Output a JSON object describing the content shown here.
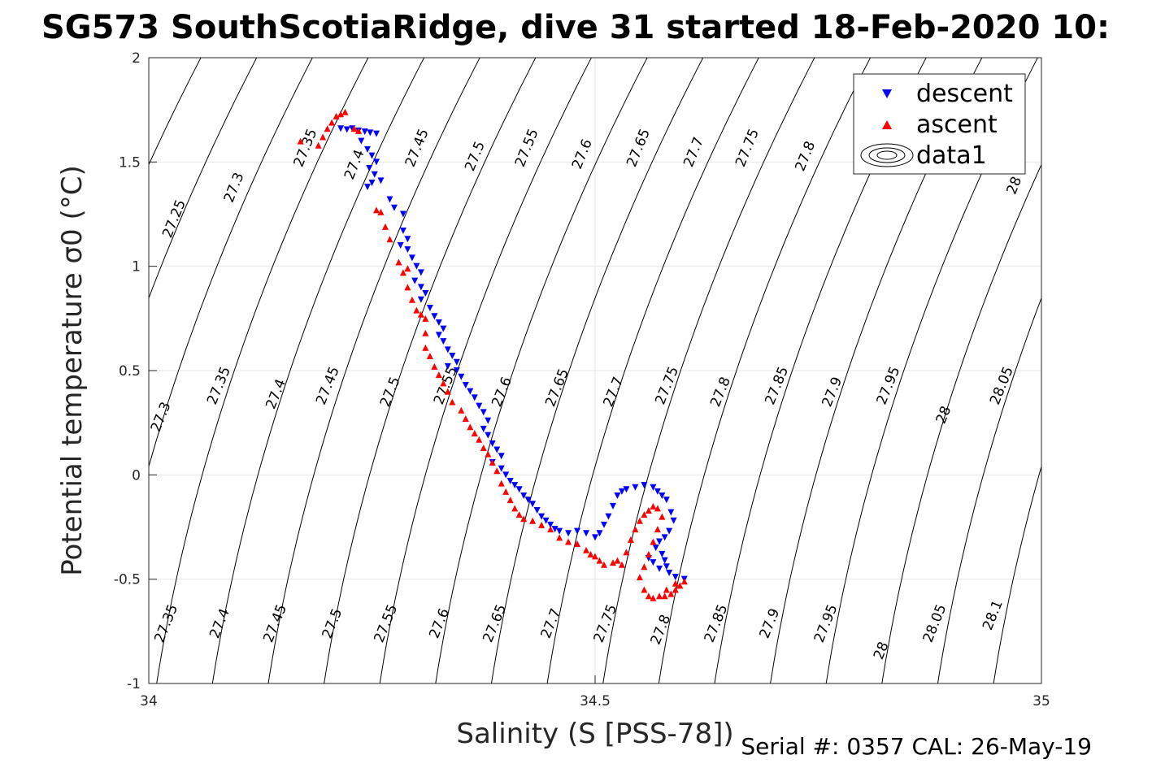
{
  "chart_data": {
    "type": "scatter",
    "title": "SG573 SouthScotiaRidge, dive 31 started 18-Feb-2020 10:",
    "xlabel": "Salinity (S [PSS-78])",
    "ylabel": "Potential temperature σ0 (°C)",
    "xlim": [
      34,
      35
    ],
    "ylim": [
      -1,
      2
    ],
    "x_ticks": [
      34,
      34.5,
      35
    ],
    "x_tick_labels": [
      "34",
      "34.5",
      "35"
    ],
    "y_ticks": [
      -1,
      -0.5,
      0,
      0.5,
      1,
      1.5,
      2
    ],
    "y_tick_labels": [
      "-1",
      "-0.5",
      "0",
      "0.5",
      "1",
      "1.5",
      "2"
    ],
    "grid": true,
    "legend_position": "top-right",
    "legend": [
      "descent",
      "ascent",
      "data1"
    ],
    "footer": "Serial #: 0357  CAL: 26-May-19",
    "colors": {
      "descent": "#0000ff",
      "ascent": "#ff0000",
      "contour": "#000000",
      "grid": "#e6e6e6"
    },
    "density_contours": {
      "levels": [
        27.25,
        27.3,
        27.35,
        27.4,
        27.45,
        27.5,
        27.55,
        27.6,
        27.65,
        27.7,
        27.75,
        27.8,
        27.85,
        27.9,
        27.95,
        28,
        28.05,
        28.1
      ],
      "labels": [
        {
          "text": "27.25",
          "s": 34.033,
          "t": 1.22
        },
        {
          "text": "27.3",
          "s": 34.1,
          "t": 1.37
        },
        {
          "text": "27.35",
          "s": 34.18,
          "t": 1.56
        },
        {
          "text": "27.4",
          "s": 34.235,
          "t": 1.48
        },
        {
          "text": "27.45",
          "s": 34.305,
          "t": 1.56
        },
        {
          "text": "27.5",
          "s": 34.37,
          "t": 1.52
        },
        {
          "text": "27.55",
          "s": 34.428,
          "t": 1.56
        },
        {
          "text": "27.6",
          "s": 34.49,
          "t": 1.53
        },
        {
          "text": "27.65",
          "s": 34.553,
          "t": 1.56
        },
        {
          "text": "27.7",
          "s": 34.615,
          "t": 1.54
        },
        {
          "text": "27.75",
          "s": 34.675,
          "t": 1.56
        },
        {
          "text": "27.8",
          "s": 34.74,
          "t": 1.52
        },
        {
          "text": "28",
          "s": 34.974,
          "t": 1.38
        },
        {
          "text": "27.3",
          "s": 34.018,
          "t": 0.27
        },
        {
          "text": "27.35",
          "s": 34.083,
          "t": 0.42
        },
        {
          "text": "27.4",
          "s": 34.147,
          "t": 0.38
        },
        {
          "text": "27.45",
          "s": 34.205,
          "t": 0.42
        },
        {
          "text": "27.5",
          "s": 34.275,
          "t": 0.39
        },
        {
          "text": "27.55",
          "s": 34.337,
          "t": 0.42
        },
        {
          "text": "27.6",
          "s": 34.4,
          "t": 0.39
        },
        {
          "text": "27.65",
          "s": 34.462,
          "t": 0.41
        },
        {
          "text": "27.7",
          "s": 34.525,
          "t": 0.39
        },
        {
          "text": "27.75",
          "s": 34.585,
          "t": 0.42
        },
        {
          "text": "27.8",
          "s": 34.645,
          "t": 0.39
        },
        {
          "text": "27.85",
          "s": 34.708,
          "t": 0.42
        },
        {
          "text": "27.9",
          "s": 34.77,
          "t": 0.39
        },
        {
          "text": "27.95",
          "s": 34.833,
          "t": 0.42
        },
        {
          "text": "28",
          "s": 34.895,
          "t": 0.28
        },
        {
          "text": "28.05",
          "s": 34.96,
          "t": 0.42
        },
        {
          "text": "27.35",
          "s": 34.024,
          "t": -0.72
        },
        {
          "text": "27.4",
          "s": 34.084,
          "t": -0.72
        },
        {
          "text": "27.45",
          "s": 34.146,
          "t": -0.72
        },
        {
          "text": "27.5",
          "s": 34.21,
          "t": -0.72
        },
        {
          "text": "27.55",
          "s": 34.27,
          "t": -0.72
        },
        {
          "text": "27.6",
          "s": 34.33,
          "t": -0.72
        },
        {
          "text": "27.65",
          "s": 34.392,
          "t": -0.72
        },
        {
          "text": "27.7",
          "s": 34.455,
          "t": -0.72
        },
        {
          "text": "27.75",
          "s": 34.516,
          "t": -0.72
        },
        {
          "text": "27.8",
          "s": 34.578,
          "t": -0.75
        },
        {
          "text": "27.85",
          "s": 34.64,
          "t": -0.72
        },
        {
          "text": "27.9",
          "s": 34.7,
          "t": -0.72
        },
        {
          "text": "27.95",
          "s": 34.763,
          "t": -0.72
        },
        {
          "text": "28",
          "s": 34.825,
          "t": -0.85
        },
        {
          "text": "28.05",
          "s": 34.885,
          "t": -0.72
        },
        {
          "text": "28.1",
          "s": 34.95,
          "t": -0.68
        }
      ]
    },
    "series": [
      {
        "name": "descent",
        "marker": "triangle-down",
        "points": [
          [
            34.215,
            1.66
          ],
          [
            34.222,
            1.655
          ],
          [
            34.228,
            1.66
          ],
          [
            34.235,
            1.65
          ],
          [
            34.242,
            1.645
          ],
          [
            34.248,
            1.64
          ],
          [
            34.255,
            1.635
          ],
          [
            34.238,
            1.6
          ],
          [
            34.245,
            1.56
          ],
          [
            34.25,
            1.53
          ],
          [
            34.255,
            1.5
          ],
          [
            34.247,
            1.47
          ],
          [
            34.253,
            1.44
          ],
          [
            34.26,
            1.41
          ],
          [
            34.245,
            1.38
          ],
          [
            34.25,
            1.4
          ],
          [
            34.27,
            1.32
          ],
          [
            34.275,
            1.28
          ],
          [
            34.285,
            1.25
          ],
          [
            34.285,
            1.17
          ],
          [
            34.29,
            1.13
          ],
          [
            34.282,
            1.1
          ],
          [
            34.29,
            1.08
          ],
          [
            34.295,
            1.04
          ],
          [
            34.3,
            1.0
          ],
          [
            34.305,
            0.97
          ],
          [
            34.298,
            0.93
          ],
          [
            34.305,
            0.9
          ],
          [
            34.31,
            0.87
          ],
          [
            34.305,
            0.84
          ],
          [
            34.315,
            0.8
          ],
          [
            34.32,
            0.76
          ],
          [
            34.325,
            0.73
          ],
          [
            34.33,
            0.7
          ],
          [
            34.325,
            0.67
          ],
          [
            34.33,
            0.64
          ],
          [
            34.335,
            0.6
          ],
          [
            34.34,
            0.57
          ],
          [
            34.345,
            0.54
          ],
          [
            34.335,
            0.52
          ],
          [
            34.345,
            0.5
          ],
          [
            34.35,
            0.47
          ],
          [
            34.355,
            0.43
          ],
          [
            34.36,
            0.4
          ],
          [
            34.365,
            0.37
          ],
          [
            34.37,
            0.33
          ],
          [
            34.375,
            0.3
          ],
          [
            34.38,
            0.26
          ],
          [
            34.375,
            0.22
          ],
          [
            34.38,
            0.19
          ],
          [
            34.385,
            0.15
          ],
          [
            34.39,
            0.12
          ],
          [
            34.395,
            0.09
          ],
          [
            34.385,
            0.06
          ],
          [
            34.395,
            0.03
          ],
          [
            34.4,
            0.0
          ],
          [
            34.405,
            -0.03
          ],
          [
            34.41,
            -0.05
          ],
          [
            34.415,
            -0.07
          ],
          [
            34.42,
            -0.1
          ],
          [
            34.425,
            -0.12
          ],
          [
            34.43,
            -0.14
          ],
          [
            34.435,
            -0.17
          ],
          [
            34.44,
            -0.2
          ],
          [
            34.445,
            -0.22
          ],
          [
            34.45,
            -0.24
          ],
          [
            34.455,
            -0.26
          ],
          [
            34.46,
            -0.27
          ],
          [
            34.47,
            -0.28
          ],
          [
            34.48,
            -0.27
          ],
          [
            34.49,
            -0.28
          ],
          [
            34.5,
            -0.3
          ],
          [
            34.505,
            -0.28
          ],
          [
            34.51,
            -0.24
          ],
          [
            34.515,
            -0.2
          ],
          [
            34.52,
            -0.15
          ],
          [
            34.525,
            -0.1
          ],
          [
            34.53,
            -0.08
          ],
          [
            34.535,
            -0.07
          ],
          [
            34.545,
            -0.06
          ],
          [
            34.555,
            -0.05
          ],
          [
            34.565,
            -0.06
          ],
          [
            34.57,
            -0.08
          ],
          [
            34.575,
            -0.1
          ],
          [
            34.58,
            -0.12
          ],
          [
            34.585,
            -0.18
          ],
          [
            34.588,
            -0.22
          ],
          [
            34.583,
            -0.27
          ],
          [
            34.578,
            -0.3
          ],
          [
            34.572,
            -0.32
          ],
          [
            34.568,
            -0.35
          ],
          [
            34.575,
            -0.38
          ],
          [
            34.578,
            -0.41
          ],
          [
            34.58,
            -0.44
          ],
          [
            34.583,
            -0.47
          ],
          [
            34.59,
            -0.49
          ],
          [
            34.6,
            -0.5
          ],
          [
            34.572,
            -0.45
          ],
          [
            34.565,
            -0.42
          ],
          [
            34.56,
            -0.4
          ]
        ]
      },
      {
        "name": "ascent",
        "marker": "triangle-up",
        "points": [
          [
            34.17,
            1.6
          ],
          [
            34.19,
            1.58
          ],
          [
            34.195,
            1.62
          ],
          [
            34.2,
            1.66
          ],
          [
            34.205,
            1.69
          ],
          [
            34.21,
            1.72
          ],
          [
            34.215,
            1.73
          ],
          [
            34.22,
            1.74
          ],
          [
            34.23,
            1.66
          ],
          [
            34.235,
            1.65
          ],
          [
            34.255,
            1.27
          ],
          [
            34.26,
            1.26
          ],
          [
            34.265,
            1.19
          ],
          [
            34.27,
            1.13
          ],
          [
            34.28,
            1.02
          ],
          [
            34.29,
            0.99
          ],
          [
            34.285,
            0.97
          ],
          [
            34.29,
            0.9
          ],
          [
            34.295,
            0.84
          ],
          [
            34.3,
            0.79
          ],
          [
            34.305,
            0.77
          ],
          [
            34.31,
            0.75
          ],
          [
            34.31,
            0.68
          ],
          [
            34.31,
            0.61
          ],
          [
            34.315,
            0.57
          ],
          [
            34.32,
            0.52
          ],
          [
            34.325,
            0.48
          ],
          [
            34.33,
            0.44
          ],
          [
            34.335,
            0.4
          ],
          [
            34.34,
            0.35
          ],
          [
            34.35,
            0.31
          ],
          [
            34.355,
            0.27
          ],
          [
            34.36,
            0.23
          ],
          [
            34.365,
            0.2
          ],
          [
            34.37,
            0.17
          ],
          [
            34.375,
            0.13
          ],
          [
            34.38,
            0.1
          ],
          [
            34.385,
            0.06
          ],
          [
            34.39,
            0.02
          ],
          [
            34.395,
            -0.04
          ],
          [
            34.4,
            -0.08
          ],
          [
            34.405,
            -0.12
          ],
          [
            34.41,
            -0.16
          ],
          [
            34.415,
            -0.19
          ],
          [
            34.42,
            -0.21
          ],
          [
            34.43,
            -0.22
          ],
          [
            34.44,
            -0.24
          ],
          [
            34.45,
            -0.26
          ],
          [
            34.46,
            -0.3
          ],
          [
            34.47,
            -0.32
          ],
          [
            34.48,
            -0.33
          ],
          [
            34.49,
            -0.36
          ],
          [
            34.495,
            -0.38
          ],
          [
            34.5,
            -0.39
          ],
          [
            34.505,
            -0.41
          ],
          [
            34.51,
            -0.43
          ],
          [
            34.52,
            -0.42
          ],
          [
            34.525,
            -0.41
          ],
          [
            34.53,
            -0.43
          ],
          [
            34.535,
            -0.37
          ],
          [
            34.54,
            -0.31
          ],
          [
            34.545,
            -0.26
          ],
          [
            34.55,
            -0.22
          ],
          [
            34.555,
            -0.19
          ],
          [
            34.56,
            -0.17
          ],
          [
            34.565,
            -0.15
          ],
          [
            34.57,
            -0.16
          ],
          [
            34.575,
            -0.2
          ],
          [
            34.57,
            -0.26
          ],
          [
            34.565,
            -0.32
          ],
          [
            34.56,
            -0.38
          ],
          [
            34.555,
            -0.44
          ],
          [
            34.55,
            -0.49
          ],
          [
            34.555,
            -0.55
          ],
          [
            34.56,
            -0.58
          ],
          [
            34.565,
            -0.59
          ],
          [
            34.572,
            -0.58
          ],
          [
            34.578,
            -0.58
          ],
          [
            34.585,
            -0.57
          ],
          [
            34.59,
            -0.55
          ],
          [
            34.595,
            -0.53
          ],
          [
            34.6,
            -0.51
          ],
          [
            34.59,
            -0.52
          ],
          [
            34.58,
            -0.55
          ]
        ]
      }
    ]
  }
}
